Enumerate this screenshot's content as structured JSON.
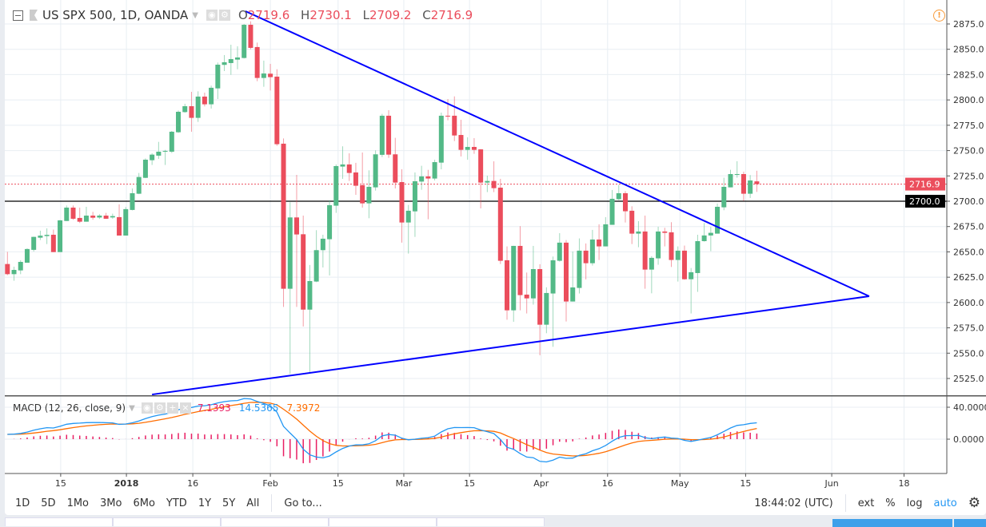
{
  "header": {
    "symbol": "US SPX 500, 1D, OANDA",
    "open_label": "O",
    "open": "2719.6",
    "high_label": "H",
    "high": "2730.1",
    "low_label": "L",
    "low": "2709.2",
    "close_label": "C",
    "close": "2716.9"
  },
  "macd": {
    "title": "MACD (12, 26, close, 9)",
    "histogram": "7.1393",
    "macd": "14.5365",
    "signal": "7.3972",
    "axis": [
      "40.0000",
      "0.0000"
    ]
  },
  "colors": {
    "up": "#53b987",
    "down": "#eb4d5c",
    "trendline": "#0000ff",
    "macd": "#2196f3",
    "signal": "#ff6d00",
    "hist": "#e91e63",
    "last_price": "#eb4d5c"
  },
  "price_axis": [
    "2875.0",
    "2850.0",
    "2825.0",
    "2800.0",
    "2775.0",
    "2750.0",
    "2725.0",
    "2700.0",
    "2675.0",
    "2650.0",
    "2625.0",
    "2600.0",
    "2575.0",
    "2550.0",
    "2525.0"
  ],
  "last_price_label": "2716.9",
  "horizontal_line_label": "2700.0",
  "horizontal_line_value": 2700,
  "trendlines": [
    {
      "from": [
        36.2,
        2887.6
      ],
      "to": [
        131.1,
        2606.2
      ]
    },
    {
      "from": [
        22,
        2509.2
      ],
      "to": [
        131.1,
        2606.2
      ]
    }
  ],
  "x_labels": [
    {
      "bar": 8.1,
      "label": "15"
    },
    {
      "bar": 18.1,
      "label": "2018"
    },
    {
      "bar": 28.2,
      "label": "16"
    },
    {
      "bar": 40,
      "label": "Feb"
    },
    {
      "bar": 50.3,
      "label": "15"
    },
    {
      "bar": 60.3,
      "label": "Mar"
    },
    {
      "bar": 70.3,
      "label": "15"
    },
    {
      "bar": 81.2,
      "label": "Apr"
    },
    {
      "bar": 91.3,
      "label": "16"
    },
    {
      "bar": 102.3,
      "label": "May"
    },
    {
      "bar": 112.3,
      "label": "15"
    },
    {
      "bar": 125.4,
      "label": "Jun"
    },
    {
      "bar": 136.4,
      "label": "18"
    }
  ],
  "toolbar": {
    "ranges": [
      "1D",
      "5D",
      "1Mo",
      "3Mo",
      "6Mo",
      "YTD",
      "1Y",
      "5Y",
      "All"
    ],
    "goto": "Go to...",
    "time": "18:44:02 (UTC)",
    "ext": "ext",
    "percent": "%",
    "log": "log",
    "auto": "auto"
  },
  "chart_data": {
    "type": "candlestick",
    "title": "US SPX 500, 1D, OANDA",
    "ylim": [
      2510,
      2885
    ],
    "candles": [
      [
        2638,
        2650,
        2627,
        2628
      ],
      [
        2628,
        2635.4,
        2621.5,
        2632.2
      ],
      [
        2631.7,
        2641.7,
        2628,
        2640.1
      ],
      [
        2639.3,
        2653.5,
        2639.3,
        2652.8
      ],
      [
        2652,
        2665,
        2650.4,
        2664.8
      ],
      [
        2664,
        2670.9,
        2661.7,
        2666
      ],
      [
        2665.6,
        2673.2,
        2657.7,
        2666.8
      ],
      [
        2666.9,
        2672,
        2649.8,
        2649.8
      ],
      [
        2649.8,
        2681.5,
        2649.8,
        2681.1
      ],
      [
        2680.5,
        2695.8,
        2680.5,
        2693.7
      ],
      [
        2693.7,
        2695.8,
        2681.7,
        2682.7
      ],
      [
        2683.5,
        2693.7,
        2678.5,
        2679.8
      ],
      [
        2679.8,
        2694.5,
        2679.8,
        2685.8
      ],
      [
        2685.8,
        2689.5,
        2681.7,
        2683.7
      ],
      [
        2683.9,
        2687.2,
        2682.5,
        2685.8
      ],
      [
        2685.8,
        2688.5,
        2682.7,
        2682.7
      ],
      [
        2684,
        2687.7,
        2682.7,
        2685.3
      ],
      [
        2684.3,
        2696.9,
        2666.1,
        2666.1
      ],
      [
        2666.1,
        2694.3,
        2666.1,
        2692.2
      ],
      [
        2691.4,
        2712.6,
        2691,
        2707.9
      ],
      [
        2707.4,
        2727.9,
        2707,
        2723.9
      ],
      [
        2723.1,
        2742.3,
        2722.8,
        2741
      ],
      [
        2740.5,
        2747.3,
        2735.8,
        2746
      ],
      [
        2745,
        2758.6,
        2741.8,
        2748.9
      ],
      [
        2749.3,
        2750.7,
        2735.8,
        2749.7
      ],
      [
        2748.9,
        2769.4,
        2747.6,
        2768.6
      ],
      [
        2768.1,
        2789.6,
        2767.5,
        2788.3
      ],
      [
        2788,
        2796.2,
        2787.3,
        2793.8
      ],
      [
        2793.8,
        2808,
        2768.6,
        2782.3
      ],
      [
        2782.3,
        2808.5,
        2778.3,
        2803.3
      ],
      [
        2803.3,
        2807.2,
        2793.6,
        2795.7
      ],
      [
        2795.7,
        2814.1,
        2791.5,
        2812
      ],
      [
        2811.4,
        2836.9,
        2800.9,
        2834.8
      ],
      [
        2834.6,
        2844.3,
        2828.5,
        2837.2
      ],
      [
        2836.4,
        2854.5,
        2824.8,
        2840.3
      ],
      [
        2839.8,
        2852.9,
        2830.3,
        2841.9
      ],
      [
        2841.4,
        2875,
        2840.9,
        2874.2
      ],
      [
        2874.2,
        2877.6,
        2850,
        2851.4
      ],
      [
        2852.2,
        2856.6,
        2818.5,
        2821.7
      ],
      [
        2821.7,
        2838.8,
        2813,
        2826.1
      ],
      [
        2825.9,
        2835.6,
        2809.3,
        2822.5
      ],
      [
        2823,
        2830.3,
        2754.7,
        2756.3
      ],
      [
        2756.8,
        2762,
        2595.7,
        2613.6
      ],
      [
        2613.6,
        2699,
        2529.5,
        2684
      ],
      [
        2684,
        2726,
        2595.7,
        2667.2
      ],
      [
        2667.4,
        2685.8,
        2576.3,
        2593
      ],
      [
        2593,
        2637,
        2530,
        2621.2
      ],
      [
        2620.7,
        2671.4,
        2620.1,
        2651.7
      ],
      [
        2651.7,
        2666.9,
        2634.6,
        2663
      ],
      [
        2662.5,
        2701.1,
        2626.7,
        2696.1
      ],
      [
        2695.6,
        2736.3,
        2688.5,
        2734.7
      ],
      [
        2734.2,
        2754.2,
        2722.1,
        2736.3
      ],
      [
        2736.3,
        2747.3,
        2720,
        2727.9
      ],
      [
        2728.4,
        2737.9,
        2706.3,
        2715.3
      ],
      [
        2715.8,
        2748.1,
        2693.7,
        2697.9
      ],
      [
        2697.9,
        2730.5,
        2683.2,
        2714.2
      ],
      [
        2713.7,
        2750.2,
        2710.5,
        2746.3
      ],
      [
        2745.8,
        2786.2,
        2743.6,
        2784.4
      ],
      [
        2784.4,
        2789.9,
        2742.8,
        2746
      ],
      [
        2746.3,
        2762.6,
        2712.6,
        2718.4
      ],
      [
        2718.9,
        2731.5,
        2659.1,
        2679
      ],
      [
        2679,
        2696.3,
        2648.3,
        2690.6
      ],
      [
        2690,
        2728.4,
        2664.8,
        2719.7
      ],
      [
        2719.4,
        2735,
        2711.3,
        2724.5
      ],
      [
        2724.5,
        2731,
        2682.2,
        2722.4
      ],
      [
        2722.4,
        2741,
        2720.5,
        2738.6
      ],
      [
        2738.1,
        2787.5,
        2731.5,
        2784.4
      ],
      [
        2784.4,
        2800.9,
        2779.9,
        2783.9
      ],
      [
        2784.4,
        2803.5,
        2759.4,
        2764.9
      ],
      [
        2765.4,
        2780.4,
        2744.2,
        2750.7
      ],
      [
        2750.7,
        2763.1,
        2741,
        2753.6
      ],
      [
        2753.6,
        2762.3,
        2746.8,
        2750.7
      ],
      [
        2751.2,
        2751.5,
        2692.9,
        2718.4
      ],
      [
        2718.4,
        2725.2,
        2709,
        2720
      ],
      [
        2720,
        2739.4,
        2709,
        2712.9
      ],
      [
        2713.4,
        2722.1,
        2638,
        2641.2
      ],
      [
        2641.7,
        2655.4,
        2583,
        2592.3
      ],
      [
        2592.3,
        2656,
        2581,
        2655.9
      ],
      [
        2655.9,
        2675.4,
        2592.3,
        2607.3
      ],
      [
        2607.8,
        2629.6,
        2589.2,
        2604.1
      ],
      [
        2604.1,
        2655.9,
        2597.9,
        2633
      ],
      [
        2633,
        2637.8,
        2547.9,
        2578.1
      ],
      [
        2578.1,
        2615,
        2569.7,
        2609.4
      ],
      [
        2608.9,
        2645.4,
        2556.3,
        2641.7
      ],
      [
        2641.2,
        2668.5,
        2640.4,
        2659.1
      ],
      [
        2659.1,
        2661.7,
        2581.3,
        2601
      ],
      [
        2601,
        2650.4,
        2601,
        2614.9
      ],
      [
        2614.4,
        2663.3,
        2608.9,
        2651.2
      ],
      [
        2651.2,
        2658.3,
        2622.8,
        2638.8
      ],
      [
        2638.8,
        2671.7,
        2636.5,
        2662.2
      ],
      [
        2662.2,
        2677.2,
        2642,
        2655.4
      ],
      [
        2655.4,
        2684.3,
        2655.4,
        2677.2
      ],
      [
        2676.7,
        2711.1,
        2676.7,
        2702.4
      ],
      [
        2702,
        2716,
        2701.1,
        2707.9
      ],
      [
        2707.9,
        2710,
        2679,
        2690.1
      ],
      [
        2690.6,
        2695,
        2657.7,
        2668
      ],
      [
        2668,
        2680.3,
        2654.6,
        2670.1
      ],
      [
        2670.1,
        2685.8,
        2613.6,
        2632.5
      ],
      [
        2632.5,
        2645.7,
        2609.1,
        2644.1
      ],
      [
        2643.6,
        2674.8,
        2637.3,
        2670.1
      ],
      [
        2670.1,
        2673.8,
        2655.4,
        2668.8
      ],
      [
        2669.3,
        2679.3,
        2635.1,
        2642
      ],
      [
        2642,
        2655.4,
        2620.7,
        2651.2
      ],
      [
        2651.2,
        2656.2,
        2622.5,
        2623
      ],
      [
        2623,
        2634.1,
        2589.2,
        2629.9
      ],
      [
        2629.1,
        2666.9,
        2610.5,
        2660.6
      ],
      [
        2660.6,
        2678.5,
        2660.1,
        2666.2
      ],
      [
        2666.2,
        2674.8,
        2650.7,
        2668.8
      ],
      [
        2668,
        2697.7,
        2668,
        2694.5
      ],
      [
        2694,
        2723.2,
        2691.1,
        2714.2
      ],
      [
        2713.7,
        2731,
        2713.7,
        2726.8
      ],
      [
        2726.3,
        2739.5,
        2723.2,
        2726.8
      ],
      [
        2726.8,
        2729.2,
        2700.3,
        2707.4
      ],
      [
        2707.4,
        2725.8,
        2703.2,
        2720.5
      ],
      [
        2719.6,
        2730.1,
        2709.2,
        2716.9
      ]
    ]
  }
}
